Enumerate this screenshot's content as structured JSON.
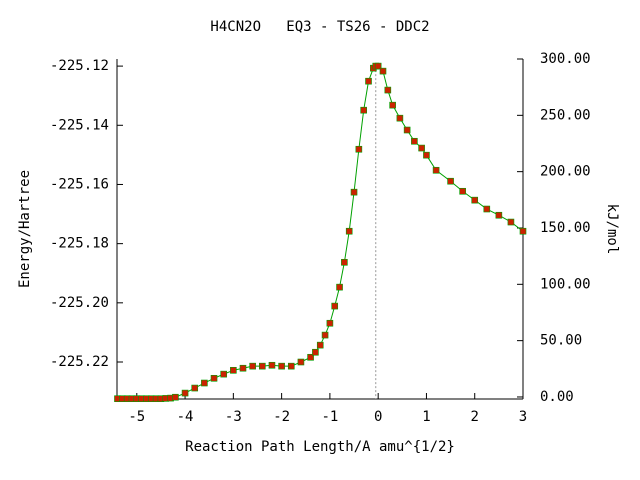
{
  "chart_data": {
    "type": "line",
    "title": "H4CN2O   EQ3 - TS26 - DDC2",
    "xlabel": "Reaction Path Length/A amu^{1/2}",
    "ylabel": "Energy/Hartree",
    "y2label": "kJ/mol",
    "x": [
      -5.4,
      -5.3,
      -5.2,
      -5.1,
      -5.0,
      -4.9,
      -4.8,
      -4.7,
      -4.6,
      -4.5,
      -4.4,
      -4.3,
      -4.2,
      -4.0,
      -3.8,
      -3.6,
      -3.4,
      -3.2,
      -3.0,
      -2.8,
      -2.6,
      -2.4,
      -2.2,
      -2.0,
      -1.8,
      -1.6,
      -1.4,
      -1.3,
      -1.2,
      -1.1,
      -1.0,
      -0.9,
      -0.8,
      -0.7,
      -0.6,
      -0.5,
      -0.4,
      -0.3,
      -0.2,
      -0.1,
      -0.05,
      0,
      0.1,
      0.2,
      0.3,
      0.45,
      0.6,
      0.75,
      0.9,
      1.0,
      1.2,
      1.5,
      1.75,
      2.0,
      2.25,
      2.5,
      2.75,
      3.0
    ],
    "series": [
      {
        "color": "#00a000",
        "marker_color": "#cc2200",
        "values": [
          -225.2324,
          -225.2324,
          -225.2324,
          -225.2324,
          -225.2324,
          -225.2324,
          -225.2324,
          -225.2324,
          -225.2324,
          -225.2324,
          -225.2323,
          -225.2322,
          -225.2319,
          -225.2305,
          -225.2288,
          -225.2271,
          -225.2255,
          -225.2241,
          -225.2228,
          -225.2221,
          -225.2214,
          -225.2214,
          -225.2211,
          -225.2214,
          -225.2214,
          -225.22,
          -225.2184,
          -225.2167,
          -225.2143,
          -225.2109,
          -225.2069,
          -225.2011,
          -225.1947,
          -225.1863,
          -225.1758,
          -225.1626,
          -225.1481,
          -225.1349,
          -225.1251,
          -225.1207,
          -225.12,
          -225.12,
          -225.1217,
          -225.1281,
          -225.1332,
          -225.1376,
          -225.1416,
          -225.1454,
          -225.1477,
          -225.1501,
          -225.1552,
          -225.1589,
          -225.1623,
          -225.1653,
          -225.1683,
          -225.1704,
          -225.1727,
          -225.1758
        ]
      }
    ],
    "xlim": [
      -5.41,
      3
    ],
    "xticks": [
      -5,
      -4,
      -3,
      -2,
      -1,
      0,
      1,
      2,
      3
    ],
    "ylim": [
      -225.2325,
      -225.1176
    ],
    "yticks": [
      -225.22,
      {
        "value": -225.2,
        "label": "-225.20"
      },
      -225.18,
      -225.16,
      -225.14,
      -225.12
    ],
    "y2lim": [
      -1.8,
      300
    ],
    "y2ticks": [
      {
        "value": 0,
        "label": "0.00"
      },
      {
        "value": 50,
        "label": "50.00"
      },
      {
        "value": 100,
        "label": "100.00"
      },
      {
        "value": 150,
        "label": "150.00"
      },
      {
        "value": 200,
        "label": "200.00"
      },
      {
        "value": 250,
        "label": "250.00"
      },
      {
        "value": 300,
        "label": "300.00"
      }
    ]
  }
}
